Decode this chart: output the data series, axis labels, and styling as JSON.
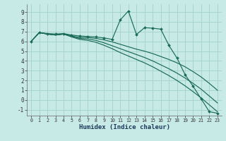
{
  "xlabel": "Humidex (Indice chaleur)",
  "background_color": "#c8eae6",
  "grid_color": "#a8d4ce",
  "line_color": "#1a6b5a",
  "xlim": [
    -0.5,
    23.5
  ],
  "ylim": [
    -1.6,
    9.8
  ],
  "xticks": [
    0,
    1,
    2,
    3,
    4,
    5,
    6,
    7,
    8,
    9,
    10,
    11,
    12,
    13,
    14,
    15,
    16,
    17,
    18,
    19,
    20,
    21,
    22,
    23
  ],
  "yticks": [
    -1,
    0,
    1,
    2,
    3,
    4,
    5,
    6,
    7,
    8,
    9
  ],
  "lines": [
    {
      "x": [
        0,
        1,
        2,
        3,
        4,
        5,
        6,
        7,
        8,
        9,
        10,
        11,
        12,
        13,
        14,
        15,
        16,
        17,
        18,
        19,
        20,
        21,
        22,
        23
      ],
      "y": [
        6.0,
        6.9,
        6.8,
        6.75,
        6.8,
        6.65,
        6.55,
        6.5,
        6.45,
        6.35,
        6.2,
        8.2,
        9.1,
        6.7,
        7.4,
        7.35,
        7.25,
        5.6,
        4.3,
        2.6,
        1.4,
        0.1,
        -1.2,
        -1.35
      ],
      "markers": true
    },
    {
      "x": [
        0,
        1,
        2,
        3,
        4,
        5,
        6,
        7,
        8,
        9,
        10,
        11,
        12,
        13,
        14,
        15,
        16,
        17,
        18,
        19,
        20,
        21,
        22,
        23
      ],
      "y": [
        6.0,
        6.9,
        6.75,
        6.65,
        6.75,
        6.55,
        6.4,
        6.4,
        6.3,
        6.15,
        5.95,
        5.7,
        5.45,
        5.2,
        5.0,
        4.75,
        4.45,
        4.15,
        3.8,
        3.4,
        2.9,
        2.35,
        1.7,
        1.0
      ],
      "markers": false
    },
    {
      "x": [
        0,
        1,
        2,
        3,
        4,
        5,
        6,
        7,
        8,
        9,
        10,
        11,
        12,
        13,
        14,
        15,
        16,
        17,
        18,
        19,
        20,
        21,
        22,
        23
      ],
      "y": [
        6.0,
        6.9,
        6.75,
        6.65,
        6.75,
        6.5,
        6.3,
        6.25,
        6.1,
        5.85,
        5.55,
        5.25,
        4.95,
        4.65,
        4.35,
        4.0,
        3.6,
        3.2,
        2.75,
        2.25,
        1.7,
        1.1,
        0.4,
        -0.3
      ],
      "markers": false
    },
    {
      "x": [
        0,
        1,
        2,
        3,
        4,
        5,
        6,
        7,
        8,
        9,
        10,
        11,
        12,
        13,
        14,
        15,
        16,
        17,
        18,
        19,
        20,
        21,
        22,
        23
      ],
      "y": [
        6.0,
        6.9,
        6.75,
        6.65,
        6.75,
        6.45,
        6.2,
        6.1,
        5.9,
        5.6,
        5.25,
        4.85,
        4.5,
        4.15,
        3.8,
        3.4,
        2.95,
        2.5,
        2.0,
        1.45,
        0.85,
        0.2,
        -0.5,
        -1.2
      ],
      "markers": false
    }
  ]
}
